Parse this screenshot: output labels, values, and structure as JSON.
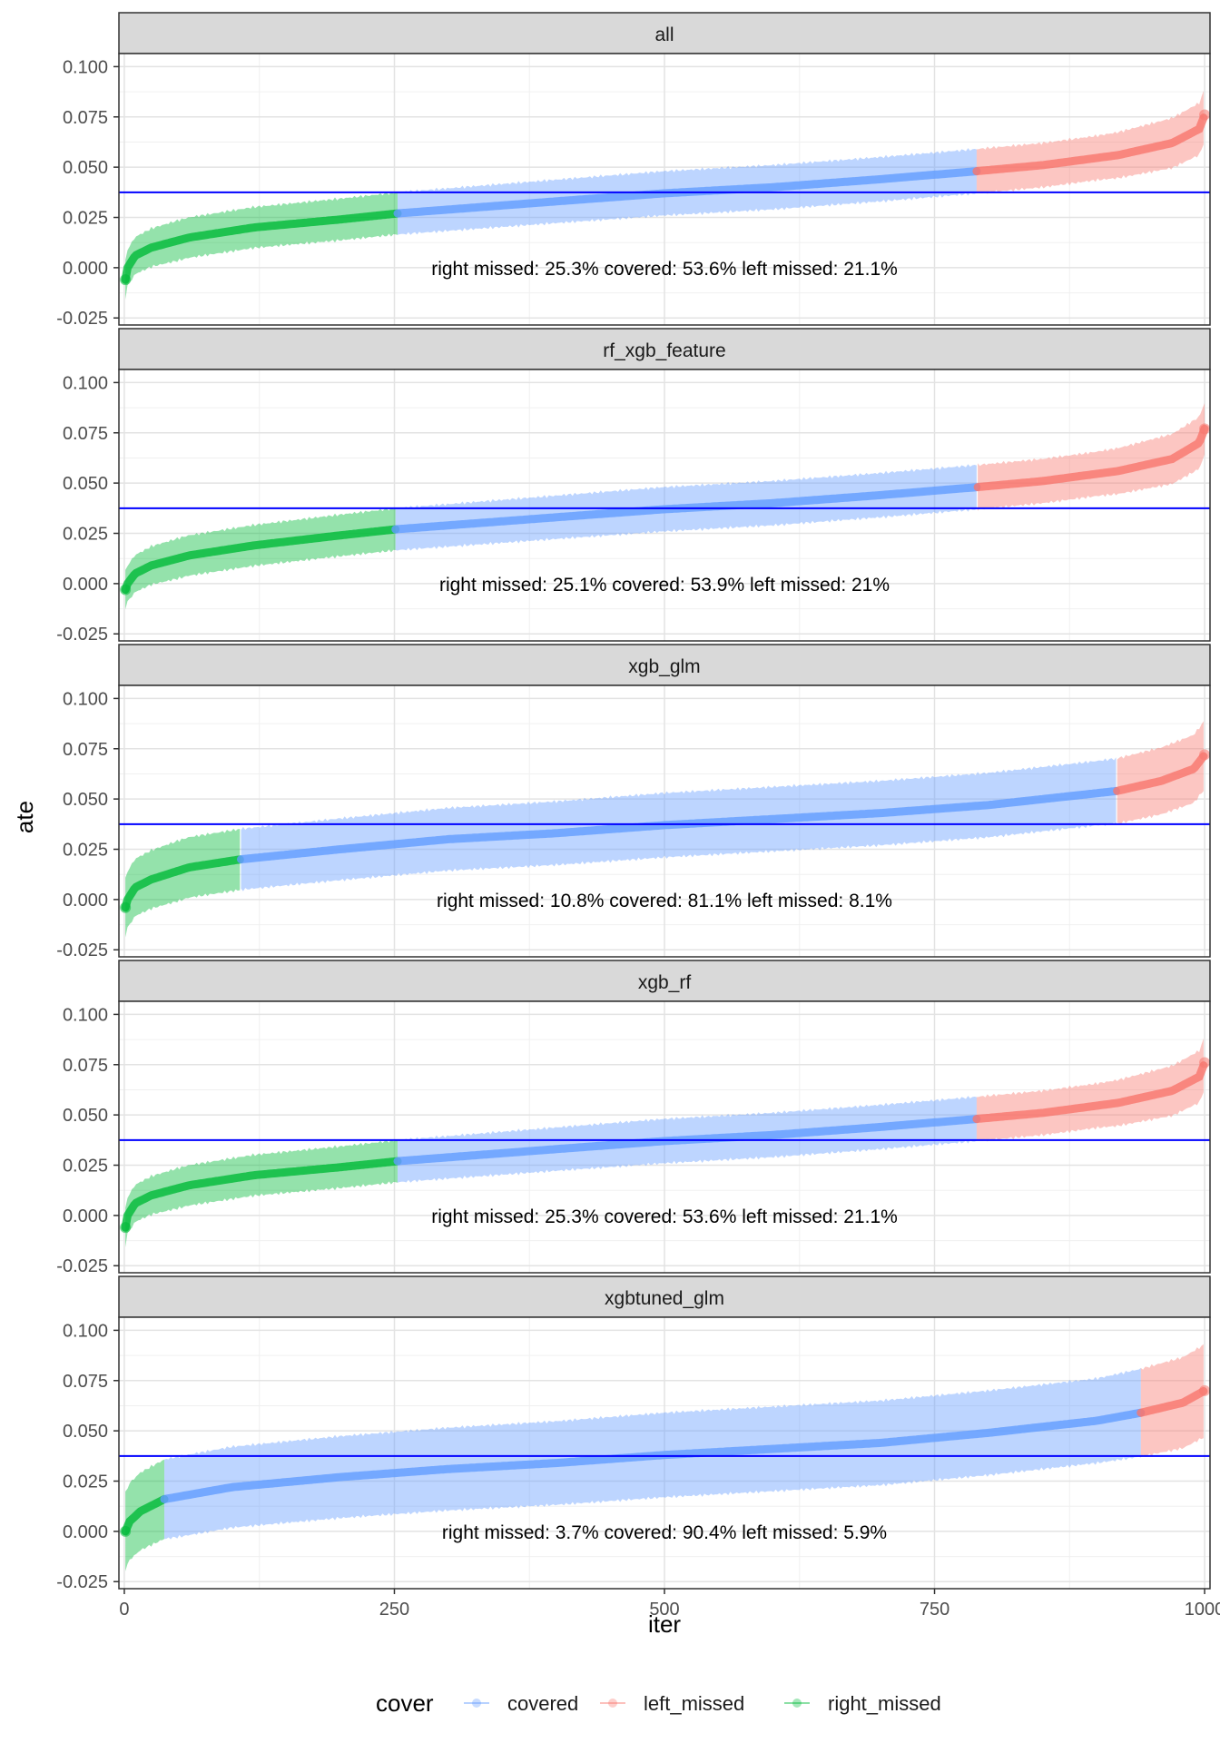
{
  "chart_data": {
    "type": "line",
    "xlabel": "iter",
    "ylabel": "ate",
    "xlim": [
      -5,
      1005
    ],
    "ylim": [
      -0.0285,
      0.1065
    ],
    "x_ticks": [
      0,
      250,
      500,
      750,
      1000
    ],
    "x_tick_labels": [
      "0",
      "250",
      "500",
      "750",
      "1000"
    ],
    "y_ticks": [
      -0.025,
      0,
      0.025,
      0.05,
      0.075,
      0.1
    ],
    "y_tick_labels": [
      "-0.025",
      "0.000",
      "0.025",
      "0.050",
      "0.075",
      "0.100"
    ],
    "reference_line": {
      "y": 0.0375,
      "color": "#0000ff"
    },
    "legend": {
      "title": "cover",
      "position": "bottom",
      "entries": [
        {
          "key": "covered",
          "label": "covered",
          "color": "#619cff"
        },
        {
          "key": "left_missed",
          "label": "left_missed",
          "color": "#f8766d"
        },
        {
          "key": "right_missed",
          "label": "right_missed",
          "color": "#00ba38"
        }
      ]
    },
    "panels": [
      {
        "name": "all",
        "annotation": "right missed: 25.3% covered: 53.6% left missed: 21.1%",
        "right_missed_end": 253,
        "left_missed_start": 789,
        "curve": [
          [
            1,
            -0.006
          ],
          [
            3,
            0
          ],
          [
            10,
            0.006
          ],
          [
            25,
            0.01
          ],
          [
            60,
            0.015
          ],
          [
            120,
            0.02
          ],
          [
            200,
            0.024
          ],
          [
            253,
            0.027
          ],
          [
            400,
            0.033
          ],
          [
            500,
            0.037
          ],
          [
            600,
            0.04
          ],
          [
            700,
            0.044
          ],
          [
            789,
            0.048
          ],
          [
            850,
            0.051
          ],
          [
            920,
            0.056
          ],
          [
            970,
            0.062
          ],
          [
            995,
            0.069
          ],
          [
            1000,
            0.076
          ]
        ],
        "ci_half_width": [
          [
            0,
            0.009
          ],
          [
            50,
            0.01
          ],
          [
            500,
            0.011
          ],
          [
            900,
            0.011
          ],
          [
            1000,
            0.013
          ]
        ]
      },
      {
        "name": "rf_xgb_feature",
        "annotation": "right missed: 25.1% covered: 53.9% left missed: 21%",
        "right_missed_end": 251,
        "left_missed_start": 790,
        "curve": [
          [
            1,
            -0.003
          ],
          [
            3,
            0
          ],
          [
            10,
            0.005
          ],
          [
            25,
            0.009
          ],
          [
            60,
            0.014
          ],
          [
            120,
            0.019
          ],
          [
            200,
            0.024
          ],
          [
            251,
            0.027
          ],
          [
            400,
            0.033
          ],
          [
            500,
            0.037
          ],
          [
            600,
            0.04
          ],
          [
            700,
            0.044
          ],
          [
            790,
            0.048
          ],
          [
            850,
            0.051
          ],
          [
            920,
            0.056
          ],
          [
            970,
            0.062
          ],
          [
            995,
            0.07
          ],
          [
            1000,
            0.077
          ]
        ],
        "ci_half_width": [
          [
            0,
            0.009
          ],
          [
            50,
            0.01
          ],
          [
            500,
            0.011
          ],
          [
            900,
            0.011
          ],
          [
            1000,
            0.013
          ]
        ]
      },
      {
        "name": "xgb_glm",
        "annotation": "right missed: 10.8% covered: 81.1% left missed: 8.1%",
        "right_missed_end": 108,
        "left_missed_start": 919,
        "curve": [
          [
            1,
            -0.004
          ],
          [
            3,
            0
          ],
          [
            10,
            0.006
          ],
          [
            25,
            0.01
          ],
          [
            60,
            0.016
          ],
          [
            108,
            0.02
          ],
          [
            200,
            0.025
          ],
          [
            300,
            0.03
          ],
          [
            400,
            0.033
          ],
          [
            500,
            0.037
          ],
          [
            600,
            0.04
          ],
          [
            700,
            0.043
          ],
          [
            800,
            0.047
          ],
          [
            919,
            0.054
          ],
          [
            960,
            0.059
          ],
          [
            990,
            0.065
          ],
          [
            1000,
            0.072
          ]
        ],
        "ci_half_width": [
          [
            0,
            0.014
          ],
          [
            50,
            0.015
          ],
          [
            500,
            0.016
          ],
          [
            900,
            0.016
          ],
          [
            1000,
            0.017
          ]
        ]
      },
      {
        "name": "xgb_rf",
        "annotation": "right missed: 25.3% covered: 53.6% left missed: 21.1%",
        "right_missed_end": 253,
        "left_missed_start": 789,
        "curve": [
          [
            1,
            -0.006
          ],
          [
            3,
            0
          ],
          [
            10,
            0.006
          ],
          [
            25,
            0.01
          ],
          [
            60,
            0.015
          ],
          [
            120,
            0.02
          ],
          [
            200,
            0.024
          ],
          [
            253,
            0.027
          ],
          [
            400,
            0.033
          ],
          [
            500,
            0.037
          ],
          [
            600,
            0.04
          ],
          [
            700,
            0.044
          ],
          [
            789,
            0.048
          ],
          [
            850,
            0.051
          ],
          [
            920,
            0.056
          ],
          [
            970,
            0.062
          ],
          [
            995,
            0.069
          ],
          [
            1000,
            0.076
          ]
        ],
        "ci_half_width": [
          [
            0,
            0.009
          ],
          [
            50,
            0.01
          ],
          [
            500,
            0.011
          ],
          [
            900,
            0.011
          ],
          [
            1000,
            0.013
          ]
        ]
      },
      {
        "name": "xgbtuned_glm",
        "annotation": "right missed: 3.7% covered: 90.4% left missed: 5.9%",
        "right_missed_end": 37,
        "left_missed_start": 941,
        "curve": [
          [
            1,
            0
          ],
          [
            5,
            0.005
          ],
          [
            15,
            0.01
          ],
          [
            37,
            0.016
          ],
          [
            100,
            0.022
          ],
          [
            200,
            0.027
          ],
          [
            300,
            0.031
          ],
          [
            400,
            0.034
          ],
          [
            500,
            0.038
          ],
          [
            600,
            0.041
          ],
          [
            700,
            0.044
          ],
          [
            800,
            0.049
          ],
          [
            900,
            0.055
          ],
          [
            941,
            0.059
          ],
          [
            980,
            0.064
          ],
          [
            1000,
            0.07
          ]
        ],
        "ci_half_width": [
          [
            0,
            0.019
          ],
          [
            50,
            0.02
          ],
          [
            500,
            0.021
          ],
          [
            900,
            0.021
          ],
          [
            1000,
            0.023
          ]
        ]
      }
    ]
  }
}
